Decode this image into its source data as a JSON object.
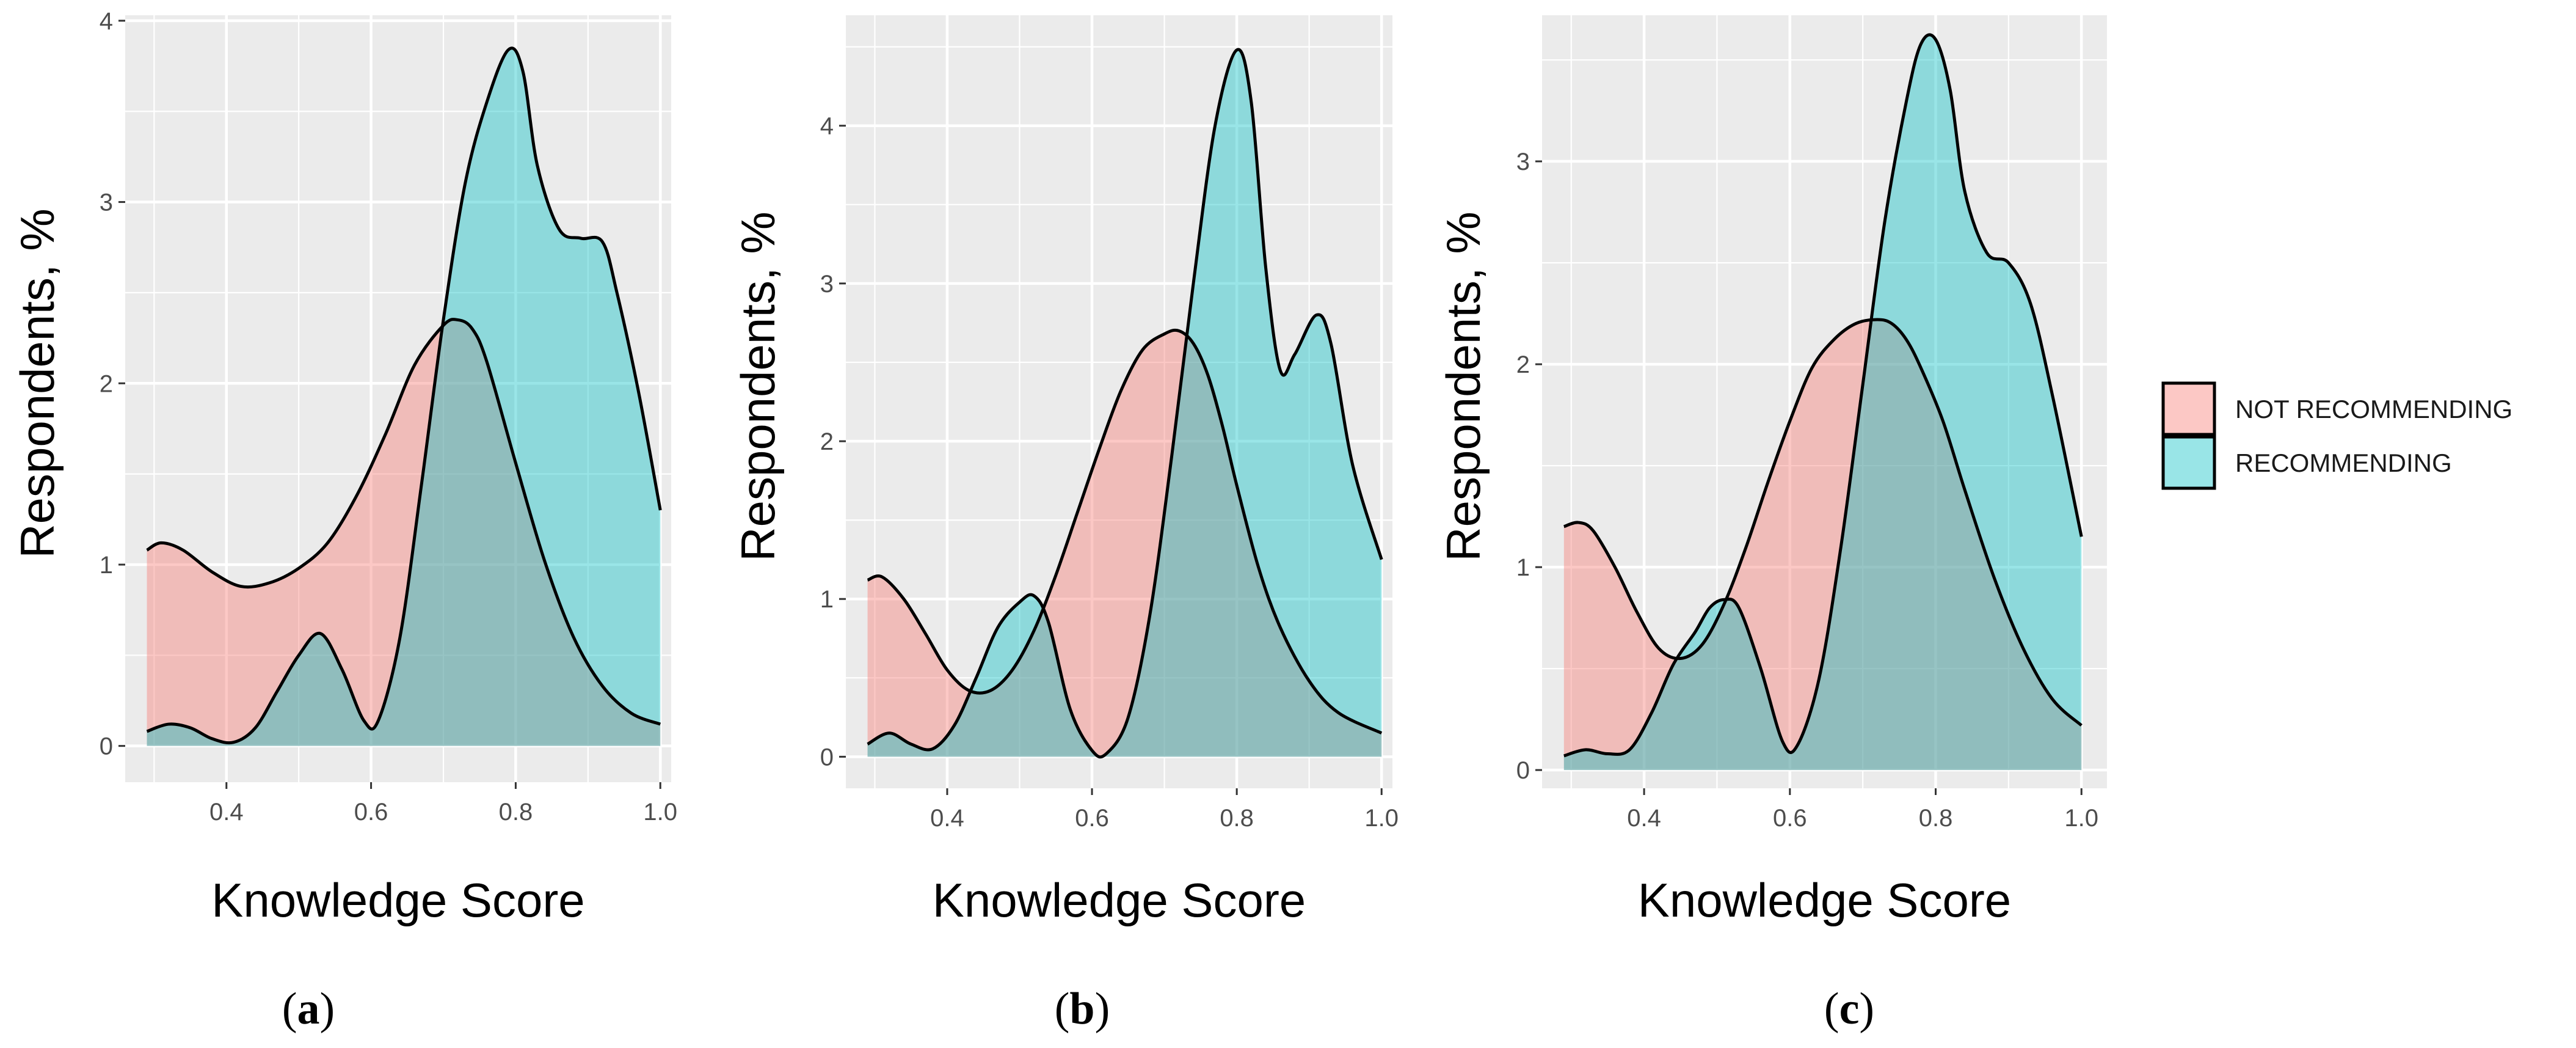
{
  "colors": {
    "not_recommending": "#F8766D",
    "recommending": "#00BFC4",
    "panel_background": "#EBEBEB",
    "grid": "#FFFFFF",
    "outline": "#000000"
  },
  "legend": {
    "items": [
      {
        "label": "NOT RECOMMENDING",
        "color": "#F8766D"
      },
      {
        "label": "RECOMMENDING",
        "color": "#00BFC4"
      }
    ]
  },
  "chart_data": [
    {
      "type": "area",
      "panel": "a",
      "caption_letter": "a",
      "xlabel": "Knowledge Score",
      "ylabel": "Respondents, %",
      "xlim": [
        0.26,
        1.015
      ],
      "ylim": [
        -0.2,
        4.03
      ],
      "xticks": [
        0.4,
        0.6,
        0.8,
        1.0
      ],
      "xtick_labels": [
        "0.4",
        "0.6",
        "0.8",
        "1.0"
      ],
      "yticks": [
        0,
        1,
        2,
        3,
        4
      ],
      "ytick_labels": [
        "0",
        "1",
        "2",
        "3",
        "4"
      ],
      "grid": true,
      "series": [
        {
          "name": "NOT RECOMMENDING",
          "color": "#F8766D",
          "x": [
            0.29,
            0.31,
            0.34,
            0.38,
            0.42,
            0.46,
            0.5,
            0.54,
            0.58,
            0.62,
            0.66,
            0.7,
            0.72,
            0.74,
            0.76,
            0.8,
            0.84,
            0.88,
            0.92,
            0.96,
            1.0
          ],
          "y": [
            1.08,
            1.12,
            1.08,
            0.96,
            0.88,
            0.9,
            0.98,
            1.12,
            1.38,
            1.72,
            2.1,
            2.32,
            2.35,
            2.3,
            2.12,
            1.56,
            1.02,
            0.6,
            0.33,
            0.18,
            0.12
          ]
        },
        {
          "name": "RECOMMENDING",
          "color": "#00BFC4",
          "x": [
            0.29,
            0.32,
            0.35,
            0.38,
            0.41,
            0.44,
            0.47,
            0.5,
            0.53,
            0.56,
            0.59,
            0.61,
            0.64,
            0.67,
            0.7,
            0.73,
            0.76,
            0.79,
            0.81,
            0.83,
            0.86,
            0.89,
            0.92,
            0.94,
            0.97,
            1.0
          ],
          "y": [
            0.08,
            0.12,
            0.1,
            0.04,
            0.02,
            0.1,
            0.3,
            0.5,
            0.62,
            0.42,
            0.14,
            0.14,
            0.6,
            1.45,
            2.35,
            3.1,
            3.55,
            3.84,
            3.72,
            3.2,
            2.85,
            2.8,
            2.78,
            2.5,
            1.95,
            1.3
          ]
        }
      ]
    },
    {
      "type": "area",
      "panel": "b",
      "caption_letter": "b",
      "xlabel": "Knowledge Score",
      "ylabel": "Respondents, %",
      "xlim": [
        0.26,
        1.015
      ],
      "ylim": [
        -0.2,
        4.7
      ],
      "xticks": [
        0.4,
        0.6,
        0.8,
        1.0
      ],
      "xtick_labels": [
        "0.4",
        "0.6",
        "0.8",
        "1.0"
      ],
      "yticks": [
        0,
        1,
        2,
        3,
        4
      ],
      "ytick_labels": [
        "0",
        "1",
        "2",
        "3",
        "4"
      ],
      "grid": true,
      "series": [
        {
          "name": "NOT RECOMMENDING",
          "color": "#F8766D",
          "x": [
            0.29,
            0.31,
            0.34,
            0.37,
            0.4,
            0.43,
            0.46,
            0.49,
            0.52,
            0.55,
            0.58,
            0.61,
            0.64,
            0.67,
            0.7,
            0.72,
            0.74,
            0.76,
            0.78,
            0.8,
            0.83,
            0.86,
            0.9,
            0.94,
            1.0
          ],
          "y": [
            1.12,
            1.14,
            1.0,
            0.78,
            0.55,
            0.42,
            0.42,
            0.55,
            0.8,
            1.15,
            1.55,
            1.95,
            2.32,
            2.58,
            2.68,
            2.7,
            2.62,
            2.42,
            2.1,
            1.72,
            1.2,
            0.82,
            0.48,
            0.28,
            0.15
          ]
        },
        {
          "name": "RECOMMENDING",
          "color": "#00BFC4",
          "x": [
            0.29,
            0.32,
            0.35,
            0.38,
            0.41,
            0.44,
            0.47,
            0.5,
            0.52,
            0.54,
            0.57,
            0.6,
            0.62,
            0.65,
            0.68,
            0.71,
            0.74,
            0.77,
            0.8,
            0.82,
            0.84,
            0.86,
            0.88,
            0.91,
            0.93,
            0.96,
            1.0
          ],
          "y": [
            0.08,
            0.15,
            0.08,
            0.05,
            0.2,
            0.5,
            0.82,
            0.98,
            1.02,
            0.85,
            0.3,
            0.04,
            0.02,
            0.25,
            0.9,
            1.9,
            3.0,
            4.0,
            4.48,
            4.15,
            3.1,
            2.45,
            2.55,
            2.8,
            2.62,
            1.85,
            1.25
          ]
        }
      ]
    },
    {
      "type": "area",
      "panel": "c",
      "caption_letter": "c",
      "xlabel": "Knowledge Score",
      "ylabel": "Respondents, %",
      "xlim": [
        0.26,
        1.035
      ],
      "ylim": [
        -0.09,
        3.72
      ],
      "xticks": [
        0.4,
        0.6,
        0.8,
        1.0
      ],
      "xtick_labels": [
        "0.4",
        "0.6",
        "0.8",
        "1.0"
      ],
      "yticks": [
        0,
        1,
        2,
        3
      ],
      "ytick_labels": [
        "0",
        "1",
        "2",
        "3"
      ],
      "grid": true,
      "series": [
        {
          "name": "NOT RECOMMENDING",
          "color": "#F8766D",
          "x": [
            0.29,
            0.31,
            0.33,
            0.36,
            0.39,
            0.42,
            0.45,
            0.48,
            0.51,
            0.54,
            0.57,
            0.6,
            0.63,
            0.66,
            0.69,
            0.72,
            0.74,
            0.76,
            0.78,
            0.81,
            0.84,
            0.88,
            0.92,
            0.96,
            1.0
          ],
          "y": [
            1.2,
            1.22,
            1.18,
            1.0,
            0.78,
            0.6,
            0.55,
            0.62,
            0.82,
            1.1,
            1.42,
            1.72,
            1.98,
            2.12,
            2.2,
            2.22,
            2.2,
            2.12,
            1.98,
            1.72,
            1.38,
            0.95,
            0.6,
            0.35,
            0.22
          ]
        },
        {
          "name": "RECOMMENDING",
          "color": "#00BFC4",
          "x": [
            0.29,
            0.32,
            0.35,
            0.38,
            0.41,
            0.44,
            0.47,
            0.49,
            0.51,
            0.53,
            0.56,
            0.59,
            0.61,
            0.64,
            0.67,
            0.7,
            0.73,
            0.76,
            0.78,
            0.8,
            0.82,
            0.84,
            0.87,
            0.9,
            0.93,
            0.96,
            1.0
          ],
          "y": [
            0.07,
            0.1,
            0.08,
            0.1,
            0.28,
            0.52,
            0.68,
            0.8,
            0.84,
            0.8,
            0.5,
            0.14,
            0.12,
            0.45,
            1.1,
            1.9,
            2.7,
            3.3,
            3.58,
            3.6,
            3.35,
            2.85,
            2.55,
            2.5,
            2.3,
            1.85,
            1.15
          ]
        }
      ]
    }
  ],
  "panels_layout": [
    {
      "data_name": "chart-panel-a",
      "plot": [
        205,
        25,
        1099,
        1280
      ],
      "ylabel_x": 60,
      "caption_x": 505
    },
    {
      "data_name": "chart-panel-b",
      "plot": [
        1385,
        25,
        2280,
        1290
      ],
      "ylabel_x": 1240,
      "caption_x": 1772
    },
    {
      "data_name": "chart-panel-c",
      "plot": [
        2525,
        25,
        3450,
        1290
      ],
      "ylabel_x": 2395,
      "caption_x": 3028
    }
  ]
}
